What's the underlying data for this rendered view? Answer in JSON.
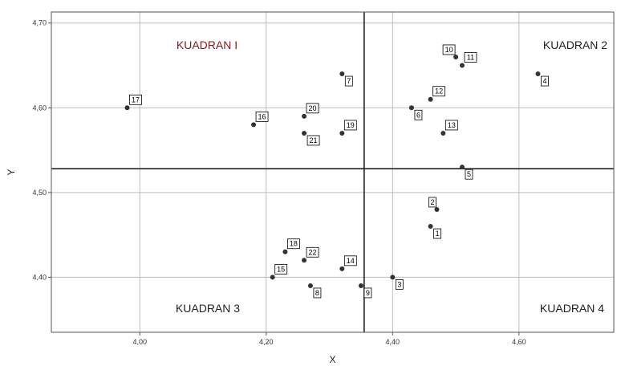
{
  "chart_data": {
    "type": "scatter",
    "xlabel": "X",
    "ylabel": "Y",
    "xlim": [
      3.86,
      4.75
    ],
    "ylim": [
      4.335,
      4.713
    ],
    "x_ticks": [
      4.0,
      4.2,
      4.4,
      4.6
    ],
    "x_tick_labels": [
      "4,00",
      "4,20",
      "4,40",
      "4,60"
    ],
    "y_ticks": [
      4.4,
      4.5,
      4.6,
      4.7
    ],
    "y_tick_labels": [
      "4,40",
      "4,50",
      "4,60",
      "4,70"
    ],
    "grid": true,
    "reference_lines": {
      "x": 4.355,
      "y": 4.528
    },
    "quadrant_labels": [
      {
        "text": "KUADRAN I",
        "position": "top-left",
        "color": "#7b1c1c"
      },
      {
        "text": "KUADRAN 2",
        "position": "top-right",
        "color": "#222222"
      },
      {
        "text": "KUADRAN 3",
        "position": "bottom-left",
        "color": "#222222"
      },
      {
        "text": "KUADRAN 4",
        "position": "bottom-right",
        "color": "#222222"
      }
    ],
    "points": [
      {
        "label": "1",
        "x": 4.46,
        "y": 4.46,
        "label_side": "below-right"
      },
      {
        "label": "2",
        "x": 4.47,
        "y": 4.48,
        "label_side": "above-left"
      },
      {
        "label": "3",
        "x": 4.4,
        "y": 4.4,
        "label_side": "below-right"
      },
      {
        "label": "4",
        "x": 4.63,
        "y": 4.64,
        "label_side": "below-right"
      },
      {
        "label": "5",
        "x": 4.51,
        "y": 4.53,
        "label_side": "below-right"
      },
      {
        "label": "6",
        "x": 4.43,
        "y": 4.6,
        "label_side": "below-right"
      },
      {
        "label": "7",
        "x": 4.32,
        "y": 4.64,
        "label_side": "below-right"
      },
      {
        "label": "8",
        "x": 4.27,
        "y": 4.39,
        "label_side": "below-right"
      },
      {
        "label": "9",
        "x": 4.35,
        "y": 4.39,
        "label_side": "below-right"
      },
      {
        "label": "10",
        "x": 4.5,
        "y": 4.66,
        "label_side": "above-left"
      },
      {
        "label": "11",
        "x": 4.51,
        "y": 4.65,
        "label_side": "above-right"
      },
      {
        "label": "12",
        "x": 4.46,
        "y": 4.61,
        "label_side": "above-right"
      },
      {
        "label": "13",
        "x": 4.48,
        "y": 4.57,
        "label_side": "above-right"
      },
      {
        "label": "14",
        "x": 4.32,
        "y": 4.41,
        "label_side": "above-right"
      },
      {
        "label": "15",
        "x": 4.21,
        "y": 4.4,
        "label_side": "above-right"
      },
      {
        "label": "16",
        "x": 4.18,
        "y": 4.58,
        "label_side": "above-right"
      },
      {
        "label": "17",
        "x": 3.98,
        "y": 4.6,
        "label_side": "above-right"
      },
      {
        "label": "18",
        "x": 4.23,
        "y": 4.43,
        "label_side": "above-right"
      },
      {
        "label": "19",
        "x": 4.32,
        "y": 4.57,
        "label_side": "above-right"
      },
      {
        "label": "20",
        "x": 4.26,
        "y": 4.59,
        "label_side": "above-right"
      },
      {
        "label": "21",
        "x": 4.26,
        "y": 4.57,
        "label_side": "below-right"
      },
      {
        "label": "22",
        "x": 4.26,
        "y": 4.42,
        "label_side": "above-right"
      }
    ],
    "colors": {
      "point": "#333333",
      "grid": "#bdbdbd",
      "reference": "#111111",
      "axis": "#555555"
    }
  }
}
